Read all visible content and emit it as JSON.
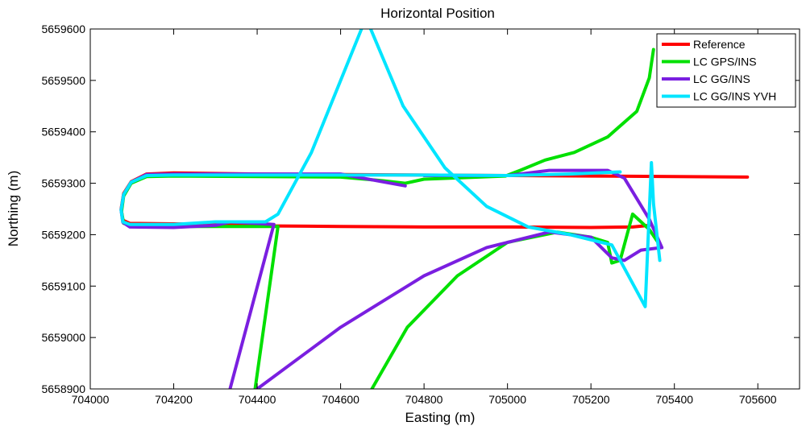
{
  "chart_data": {
    "type": "line",
    "title": "Horizontal Position",
    "xlabel": "Easting (m)",
    "ylabel": "Northing (m)",
    "xlim": [
      704000,
      705700
    ],
    "ylim": [
      5658900,
      5659600
    ],
    "xticks": [
      704000,
      704200,
      704400,
      704600,
      704800,
      705000,
      705200,
      705400,
      705600
    ],
    "yticks": [
      5658900,
      5659000,
      5659100,
      5659200,
      5659300,
      5659400,
      5659500,
      5659600
    ],
    "xtick_labels": [
      "704000",
      "704200",
      "704400",
      "704600",
      "704800",
      "705000",
      "705200",
      "705400",
      "705600"
    ],
    "ytick_labels": [
      "5658900",
      "5659000",
      "5659100",
      "5659200",
      "5659300",
      "5659400",
      "5659500",
      "5659600"
    ],
    "legend_position": "top-right",
    "grid": false,
    "series": [
      {
        "name": "Reference",
        "color": "#ff0000",
        "points": [
          [
            705575,
            5659312
          ],
          [
            705400,
            5659313
          ],
          [
            705200,
            5659314
          ],
          [
            705000,
            5659315
          ],
          [
            704800,
            5659316
          ],
          [
            704600,
            5659317
          ],
          [
            704400,
            5659318
          ],
          [
            704200,
            5659320
          ],
          [
            704135,
            5659318
          ],
          [
            704098,
            5659303
          ],
          [
            704080,
            5659280
          ],
          [
            704074,
            5659250
          ],
          [
            704078,
            5659228
          ],
          [
            704095,
            5659222
          ],
          [
            704200,
            5659221
          ],
          [
            704300,
            5659220
          ],
          [
            704445,
            5659217
          ],
          [
            704600,
            5659216
          ],
          [
            704800,
            5659215
          ],
          [
            705000,
            5659215
          ],
          [
            705200,
            5659214
          ],
          [
            705300,
            5659215
          ],
          [
            705340,
            5659218
          ]
        ]
      },
      {
        "name": "LC GPS/INS",
        "color": "#00e000",
        "points": [
          [
            705350,
            5659560
          ],
          [
            705340,
            5659505
          ],
          [
            705310,
            5659440
          ],
          [
            705240,
            5659390
          ],
          [
            705160,
            5659360
          ],
          [
            705090,
            5659345
          ],
          [
            705030,
            5659325
          ],
          [
            704995,
            5659314
          ],
          [
            704800,
            5659308
          ],
          [
            704755,
            5659300
          ],
          [
            704700,
            5659305
          ],
          [
            704600,
            5659312
          ],
          [
            704400,
            5659313
          ],
          [
            704200,
            5659314
          ],
          [
            704135,
            5659313
          ],
          [
            704098,
            5659300
          ],
          [
            704080,
            5659275
          ],
          [
            704075,
            5659245
          ],
          [
            704080,
            5659222
          ],
          [
            704100,
            5659217
          ],
          [
            704200,
            5659216
          ],
          [
            704300,
            5659216
          ],
          [
            704450,
            5659216
          ],
          [
            704395,
            5658900
          ],
          [
            null,
            null
          ],
          [
            704675,
            5658900
          ],
          [
            704760,
            5659020
          ],
          [
            704880,
            5659120
          ],
          [
            705000,
            5659185
          ],
          [
            705120,
            5659205
          ],
          [
            705200,
            5659195
          ],
          [
            705240,
            5659185
          ],
          [
            705250,
            5659145
          ],
          [
            705270,
            5659150
          ],
          [
            705300,
            5659240
          ],
          [
            705340,
            5659210
          ],
          [
            705365,
            5659180
          ]
        ]
      },
      {
        "name": "LC GG/INS",
        "color": "#7a1fe0",
        "points": [
          [
            704755,
            5659295
          ],
          [
            704700,
            5659303
          ],
          [
            704600,
            5659318
          ],
          [
            704400,
            5659318
          ],
          [
            704200,
            5659318
          ],
          [
            704135,
            5659317
          ],
          [
            704098,
            5659302
          ],
          [
            704080,
            5659278
          ],
          [
            704074,
            5659248
          ],
          [
            704078,
            5659224
          ],
          [
            704095,
            5659215
          ],
          [
            704200,
            5659214
          ],
          [
            704300,
            5659218
          ],
          [
            704335,
            5659225
          ],
          [
            704440,
            5659220
          ],
          [
            704335,
            5658900
          ],
          [
            null,
            null
          ],
          [
            704400,
            5658900
          ],
          [
            704600,
            5659020
          ],
          [
            704800,
            5659120
          ],
          [
            704950,
            5659175
          ],
          [
            705100,
            5659205
          ],
          [
            705200,
            5659195
          ],
          [
            705250,
            5659155
          ],
          [
            705280,
            5659150
          ],
          [
            705320,
            5659170
          ],
          [
            705370,
            5659175
          ],
          [
            705340,
            5659230
          ],
          [
            705310,
            5659270
          ],
          [
            705280,
            5659310
          ],
          [
            705240,
            5659325
          ],
          [
            705100,
            5659325
          ],
          [
            705000,
            5659315
          ],
          [
            704800,
            5659315
          ]
        ]
      },
      {
        "name": "LC GG/INS YVH",
        "color": "#00e5ff",
        "points": [
          [
            705270,
            5659322
          ],
          [
            705150,
            5659318
          ],
          [
            705000,
            5659315
          ],
          [
            704800,
            5659316
          ],
          [
            704600,
            5659316
          ],
          [
            704400,
            5659316
          ],
          [
            704200,
            5659316
          ],
          [
            704135,
            5659315
          ],
          [
            704098,
            5659302
          ],
          [
            704080,
            5659278
          ],
          [
            704074,
            5659248
          ],
          [
            704078,
            5659225
          ],
          [
            704095,
            5659220
          ],
          [
            704200,
            5659220
          ],
          [
            704300,
            5659225
          ],
          [
            704420,
            5659225
          ],
          [
            704450,
            5659240
          ],
          [
            704530,
            5659360
          ],
          [
            704650,
            5659600
          ],
          [
            null,
            null
          ],
          [
            704672,
            5659600
          ],
          [
            704750,
            5659450
          ],
          [
            704850,
            5659330
          ],
          [
            704950,
            5659255
          ],
          [
            705050,
            5659215
          ],
          [
            705150,
            5659200
          ],
          [
            705250,
            5659180
          ],
          [
            705330,
            5659060
          ],
          [
            705345,
            5659340
          ],
          [
            705350,
            5659260
          ],
          [
            705365,
            5659150
          ]
        ]
      }
    ]
  }
}
